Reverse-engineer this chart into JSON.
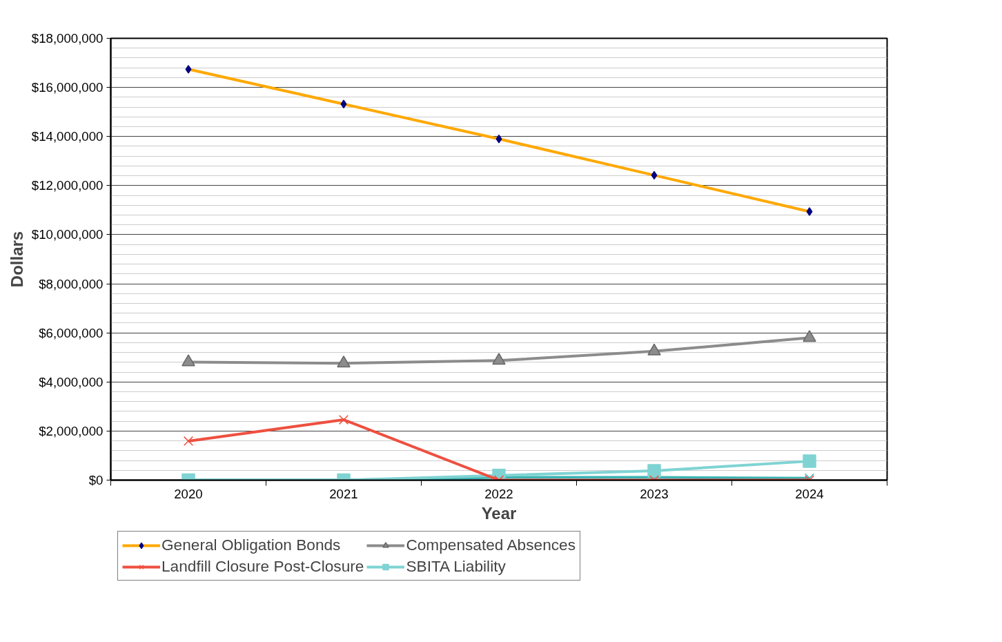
{
  "chart_data": {
    "type": "line",
    "xlabel": "Year",
    "ylabel": "Dollars",
    "categories": [
      "2020",
      "2021",
      "2022",
      "2023",
      "2024"
    ],
    "ylim": [
      0,
      18000000
    ],
    "yticks": [
      {
        "value": 0,
        "label": "$0"
      },
      {
        "value": 2000000,
        "label": "$2,000,000"
      },
      {
        "value": 4000000,
        "label": "$4,000,000"
      },
      {
        "value": 6000000,
        "label": "$6,000,000"
      },
      {
        "value": 8000000,
        "label": "$8,000,000"
      },
      {
        "value": 10000000,
        "label": "$10,000,000"
      },
      {
        "value": 12000000,
        "label": "$12,000,000"
      },
      {
        "value": 14000000,
        "label": "$14,000,000"
      },
      {
        "value": 16000000,
        "label": "$16,000,000"
      },
      {
        "value": 18000000,
        "label": "$18,000,000"
      }
    ],
    "grid": "y",
    "legend": "bottom",
    "line_style": "solid",
    "series": [
      {
        "name": "General Obligation Bonds",
        "color": "#ffa800",
        "marker": "diamond",
        "values": [
          16740000,
          15320000,
          13900000,
          12420000,
          10940000
        ]
      },
      {
        "name": "Compensated Absences",
        "color": "#8c8c8c",
        "marker": "triangle",
        "values": [
          4810000,
          4760000,
          4870000,
          5250000,
          5800000
        ]
      },
      {
        "name": "Landfill Closure Post-Closure",
        "color": "#ee5040",
        "marker": "cross",
        "values": [
          1590000,
          2460000,
          0,
          0,
          0
        ]
      },
      {
        "name": "SBITA Liability",
        "color": "#7fd3d3",
        "marker": "square",
        "values": [
          0,
          0,
          190000,
          380000,
          770000
        ]
      },
      {
        "color": "#3cb4b4",
        "marker": "cross",
        "values": [
          0,
          0,
          110000,
          110000,
          80000
        ]
      }
    ]
  }
}
